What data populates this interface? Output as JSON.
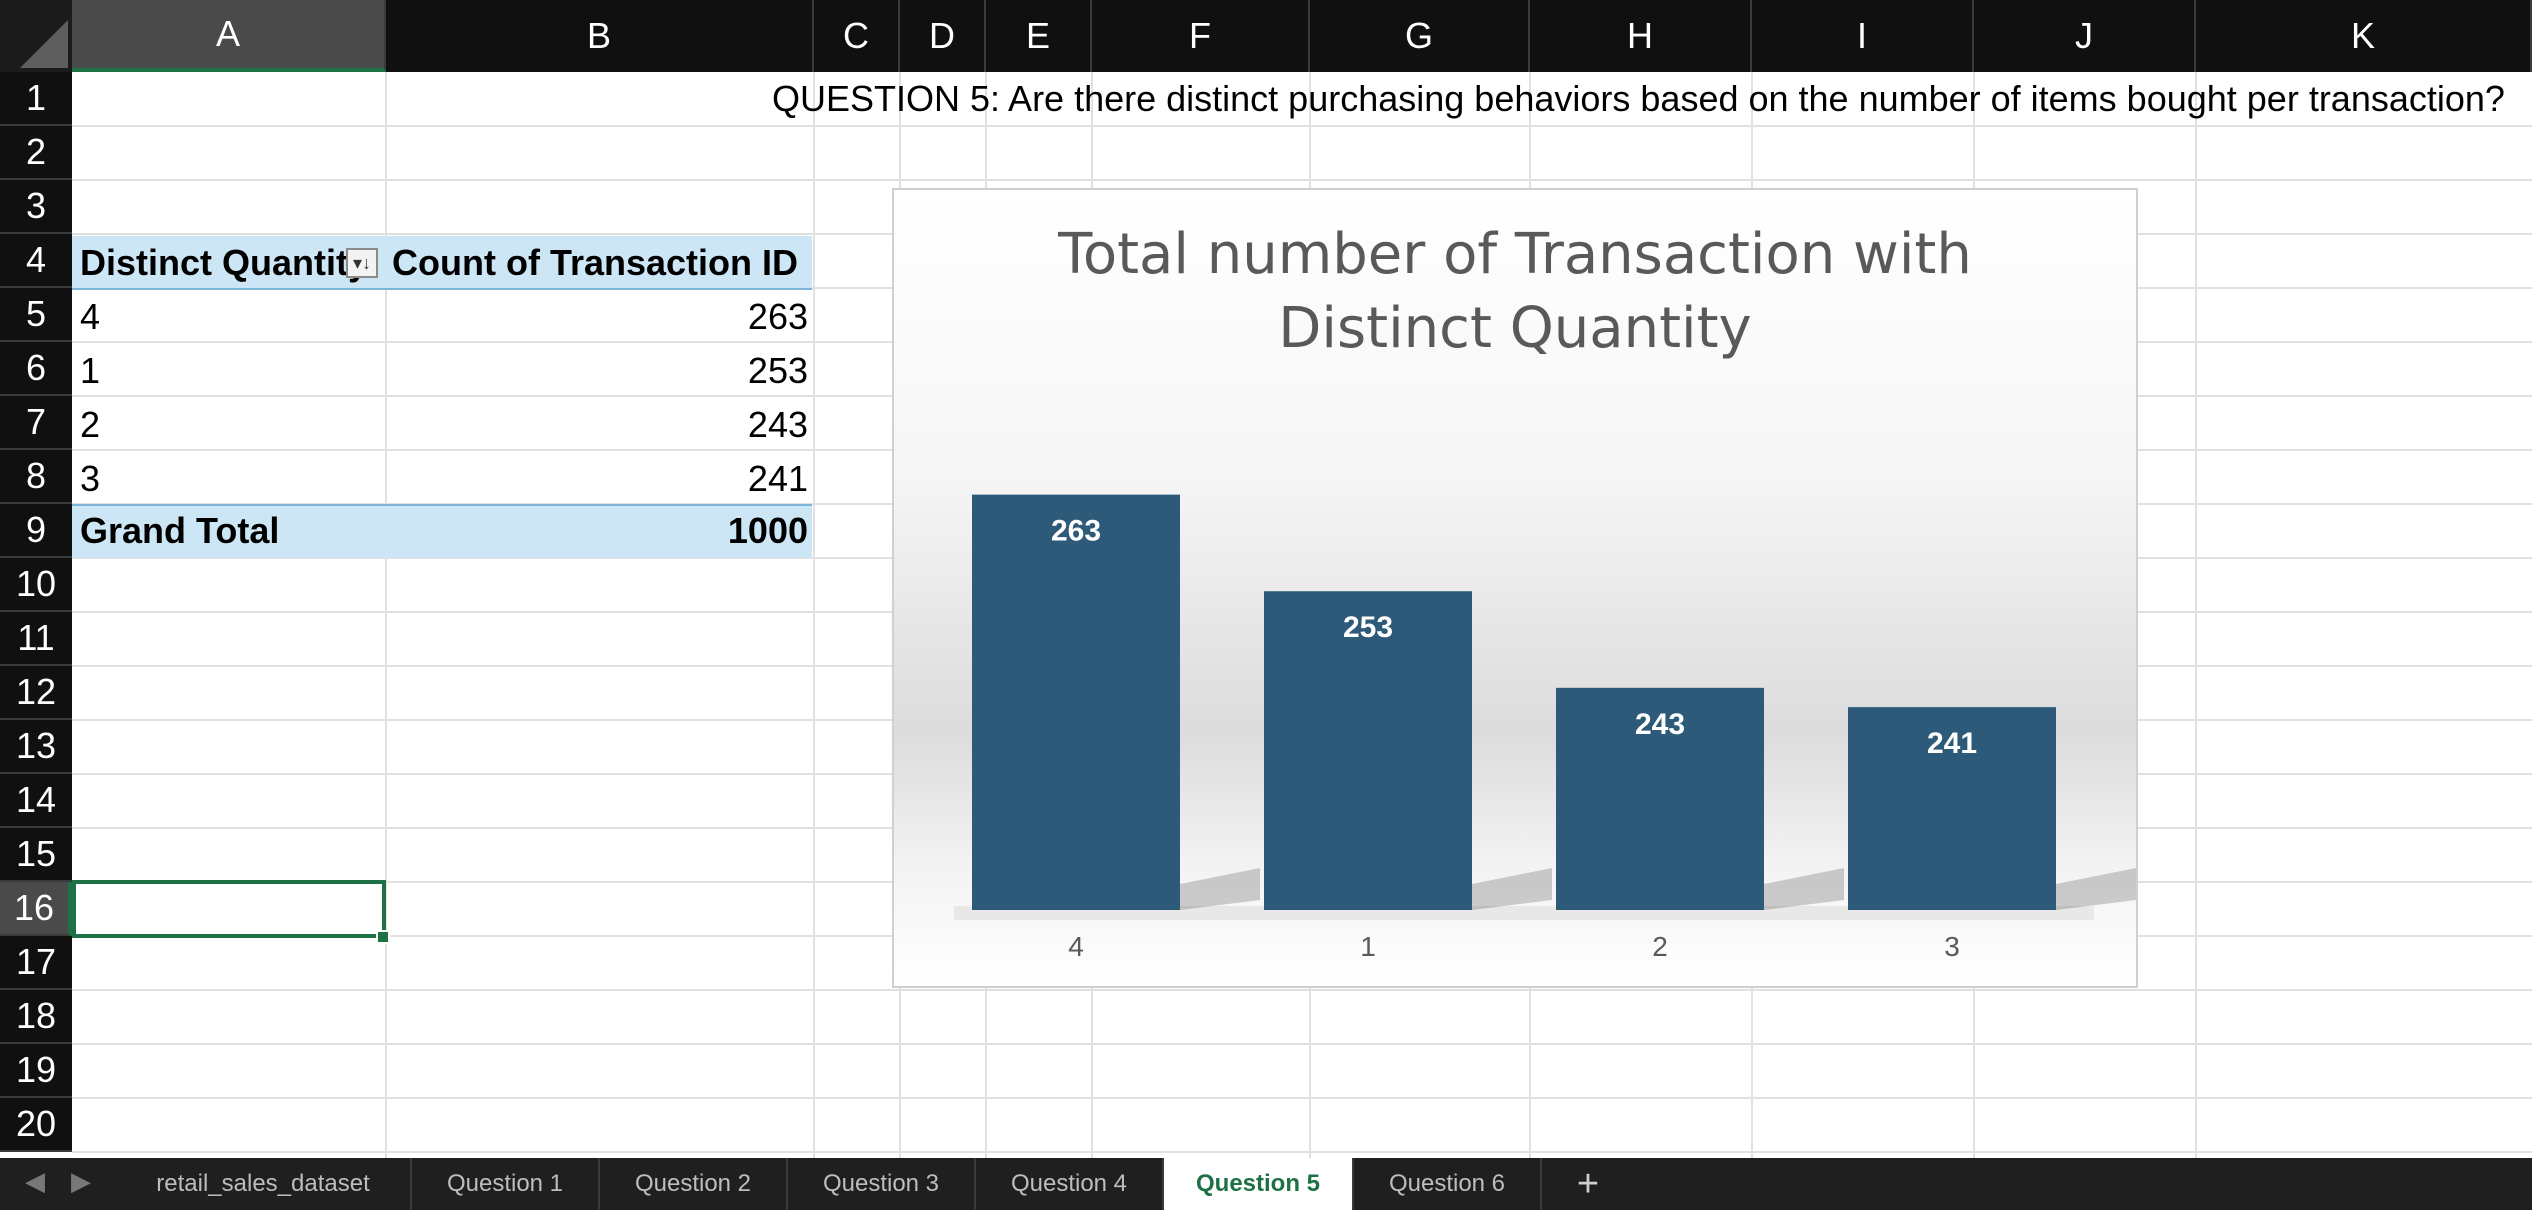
{
  "columns": [
    "A",
    "B",
    "C",
    "D",
    "E",
    "F",
    "G",
    "H",
    "I",
    "J",
    "K"
  ],
  "rows": [
    "1",
    "2",
    "3",
    "4",
    "5",
    "6",
    "7",
    "8",
    "9",
    "10",
    "11",
    "12",
    "13",
    "14",
    "15",
    "16",
    "17",
    "18",
    "19",
    "20"
  ],
  "selected_column": "A",
  "selected_row": "16",
  "question_title": "QUESTION 5: Are there distinct purchasing behaviors based on the number of items bought per transaction?",
  "pivot": {
    "header_col1": "Distinct Quantity",
    "header_col2": "Count of Transaction ID",
    "rows": [
      {
        "key": "4",
        "value": "263"
      },
      {
        "key": "1",
        "value": "253"
      },
      {
        "key": "2",
        "value": "243"
      },
      {
        "key": "3",
        "value": "241"
      }
    ],
    "total_label": "Grand Total",
    "total_value": "1000",
    "filter_icon": "sort-descending-filter-icon"
  },
  "chart_data": {
    "type": "bar",
    "title_line1": "Total number of  Transaction with",
    "title_line2": "Distinct Quantity",
    "categories": [
      "4",
      "1",
      "2",
      "3"
    ],
    "values": [
      263,
      253,
      243,
      241
    ],
    "ylim": [
      220,
      270
    ],
    "show_data_labels": true,
    "bar_color": "#2e5a79",
    "label_color": "#ffffff",
    "grid": false,
    "legend": "none"
  },
  "tabs": {
    "items": [
      "retail_sales_dataset",
      "Question 1",
      "Question 2",
      "Question 3",
      "Question 4",
      "Question 5",
      "Question 6"
    ],
    "active": "Question 5",
    "add_label": "+"
  },
  "colors": {
    "accent": "#1e7145",
    "pivot_band": "#cde6f5"
  }
}
